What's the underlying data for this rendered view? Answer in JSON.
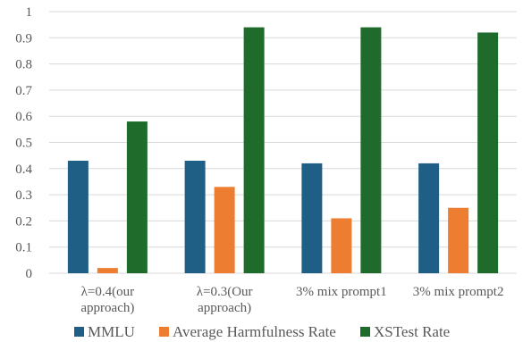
{
  "chart_data": {
    "type": "bar",
    "categories": [
      [
        "λ=0.4(our",
        "approach)"
      ],
      [
        "λ=0.3(Our",
        "approach)"
      ],
      [
        "3% mix prompt1"
      ],
      [
        "3% mix prompt2"
      ]
    ],
    "series": [
      {
        "name": "MMLU",
        "color": "#1f5f86",
        "values": [
          0.43,
          0.43,
          0.42,
          0.42
        ]
      },
      {
        "name": "Average Harmfulness Rate",
        "color": "#ed7d31",
        "values": [
          0.02,
          0.33,
          0.21,
          0.25
        ]
      },
      {
        "name": "XSTest Rate",
        "color": "#1e6b2c",
        "values": [
          0.58,
          0.94,
          0.94,
          0.92
        ]
      }
    ],
    "yticks": [
      "0",
      "0.1",
      "0.2",
      "0.3",
      "0.4",
      "0.5",
      "0.6",
      "0.7",
      "0.8",
      "0.9",
      "1"
    ],
    "ylim": [
      0,
      1
    ],
    "grid": true,
    "legend": "bottom",
    "title": "",
    "xlabel": "",
    "ylabel": ""
  }
}
